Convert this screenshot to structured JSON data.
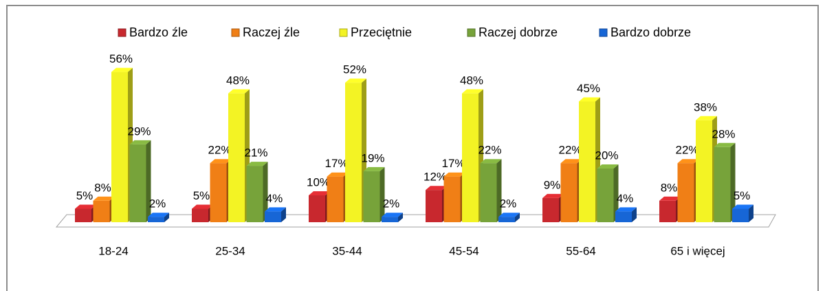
{
  "chart_data": {
    "type": "bar",
    "categories": [
      "18-24",
      "25-34",
      "35-44",
      "45-54",
      "55-64",
      "65 i więcej"
    ],
    "series": [
      {
        "name": "Bardzo źle",
        "color": "#c8282e",
        "values": [
          5,
          5,
          10,
          12,
          9,
          8
        ],
        "value_labels": [
          "5%",
          "5%",
          "10%",
          "12%",
          "9%",
          "8%"
        ]
      },
      {
        "name": "Raczej źle",
        "color": "#f07f16",
        "values": [
          8,
          22,
          17,
          17,
          22,
          22
        ],
        "value_labels": [
          "8%",
          "22%",
          "17%",
          "17%",
          "22%",
          "22%"
        ]
      },
      {
        "name": "Przeciętnie",
        "color": "#f3f324",
        "values": [
          56,
          48,
          52,
          48,
          45,
          38
        ],
        "value_labels": [
          "56%",
          "48%",
          "52%",
          "48%",
          "45%",
          "38%"
        ]
      },
      {
        "name": "Raczej dobrze",
        "color": "#77a33a",
        "values": [
          29,
          21,
          19,
          22,
          20,
          28
        ],
        "value_labels": [
          "29%",
          "21%",
          "19%",
          "22%",
          "20%",
          "28%"
        ]
      },
      {
        "name": "Bardzo dobrze",
        "color": "#1766d6",
        "values": [
          2,
          4,
          2,
          2,
          4,
          5
        ],
        "value_labels": [
          "2%",
          "4%",
          "2%",
          "2%",
          "4%",
          "5%"
        ]
      }
    ],
    "legend": "top"
  }
}
